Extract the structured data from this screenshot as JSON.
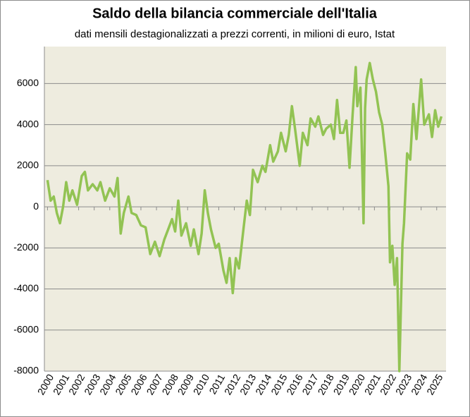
{
  "chart_data": {
    "type": "line",
    "title": "Saldo della bilancia commerciale dell'Italia",
    "subtitle": "dati mensili destagionalizzati a prezzi correnti, in milioni di euro, Istat",
    "x": [
      2000.0,
      2000.2,
      2000.4,
      2000.6,
      2000.8,
      2001.0,
      2001.2,
      2001.4,
      2001.6,
      2001.9,
      2002.2,
      2002.4,
      2002.6,
      2002.9,
      2003.2,
      2003.4,
      2003.7,
      2004.0,
      2004.3,
      2004.5,
      2004.7,
      2004.9,
      2005.2,
      2005.4,
      2005.7,
      2006.0,
      2006.3,
      2006.6,
      2006.9,
      2007.2,
      2007.5,
      2007.8,
      2008.0,
      2008.2,
      2008.4,
      2008.6,
      2008.9,
      2009.2,
      2009.4,
      2009.7,
      2009.9,
      2010.1,
      2010.3,
      2010.5,
      2010.8,
      2011.0,
      2011.3,
      2011.5,
      2011.7,
      2011.9,
      2012.1,
      2012.3,
      2012.6,
      2012.8,
      2013.0,
      2013.2,
      2013.5,
      2013.8,
      2014.0,
      2014.3,
      2014.5,
      2014.8,
      2015.0,
      2015.3,
      2015.5,
      2015.7,
      2015.9,
      2016.2,
      2016.4,
      2016.7,
      2016.9,
      2017.2,
      2017.4,
      2017.7,
      2017.9,
      2018.2,
      2018.4,
      2018.6,
      2018.8,
      2019.0,
      2019.2,
      2019.4,
      2019.6,
      2019.8,
      2019.9,
      2020.1,
      2020.3,
      2020.4,
      2020.5,
      2020.7,
      2020.9,
      2021.1,
      2021.3,
      2021.5,
      2021.7,
      2021.9,
      2022.0,
      2022.15,
      2022.3,
      2022.45,
      2022.6,
      2022.8,
      2022.9,
      2023.1,
      2023.3,
      2023.5,
      2023.7,
      2024.0,
      2024.2,
      2024.5,
      2024.7,
      2024.9,
      2025.1,
      2025.3
    ],
    "series": [
      {
        "name": "Saldo",
        "color": "#92c353",
        "values": [
          1300,
          300,
          500,
          -300,
          -800,
          0,
          1200,
          300,
          800,
          100,
          1500,
          1700,
          800,
          1100,
          800,
          1200,
          300,
          900,
          500,
          1400,
          -1300,
          -300,
          500,
          -300,
          -400,
          -900,
          -1000,
          -2300,
          -1700,
          -2400,
          -1600,
          -1000,
          -600,
          -1200,
          300,
          -1400,
          -800,
          -1900,
          -1100,
          -2300,
          -1300,
          800,
          -300,
          -1100,
          -2000,
          -1800,
          -3100,
          -3700,
          -2500,
          -4200,
          -2500,
          -3000,
          -1000,
          300,
          -400,
          1800,
          1200,
          2000,
          1700,
          3000,
          2200,
          2700,
          3600,
          2700,
          3500,
          4900,
          3800,
          2000,
          3600,
          3000,
          4300,
          3900,
          4400,
          3500,
          3800,
          4000,
          3300,
          5200,
          3600,
          3600,
          4200,
          1900,
          4500,
          6800,
          4900,
          5800,
          -800,
          4800,
          6200,
          7000,
          6200,
          5600,
          4600,
          4000,
          2600,
          1000,
          -2700,
          -1900,
          -3800,
          -2500,
          -8000,
          -1800,
          -800,
          2600,
          2300,
          5000,
          3300,
          6200,
          4000,
          4500,
          3400,
          4700,
          3900,
          4400
        ]
      }
    ],
    "xlim": [
      1999.8,
      2025.6
    ],
    "xticks": [
      2000,
      2001,
      2002,
      2003,
      2004,
      2005,
      2006,
      2007,
      2008,
      2009,
      2010,
      2011,
      2012,
      2013,
      2014,
      2015,
      2016,
      2017,
      2018,
      2019,
      2020,
      2021,
      2022,
      2023,
      2024,
      2025
    ],
    "ylim": [
      -8000,
      7800
    ],
    "yticks": [
      -8000,
      -6000,
      -4000,
      -2000,
      0,
      2000,
      4000,
      6000
    ],
    "grid": true
  }
}
